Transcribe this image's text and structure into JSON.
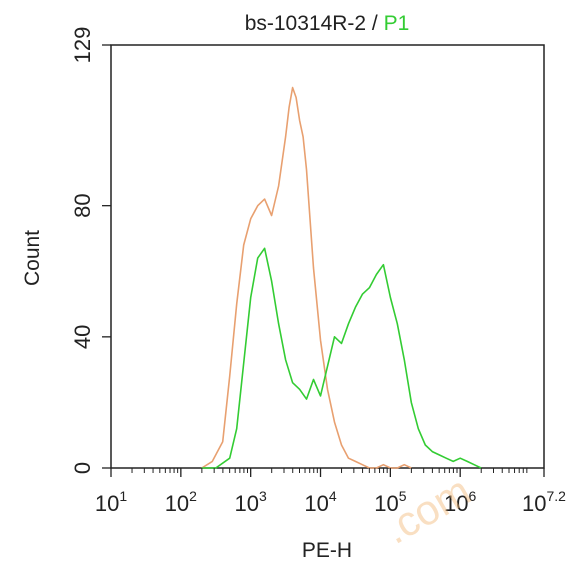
{
  "chart_data": {
    "type": "histogram",
    "title": {
      "sample": "bs-10314R-2",
      "separator": " / ",
      "gate": "P1"
    },
    "xlabel": "PE-H",
    "ylabel": "Count",
    "x_scale": "log",
    "xlim_log10": [
      1,
      7.2
    ],
    "ylim": [
      0,
      129
    ],
    "x_ticks": [
      {
        "base": "10",
        "exp": "1",
        "value": 1
      },
      {
        "base": "10",
        "exp": "2",
        "value": 2
      },
      {
        "base": "10",
        "exp": "3",
        "value": 3
      },
      {
        "base": "10",
        "exp": "4",
        "value": 4
      },
      {
        "base": "10",
        "exp": "5",
        "value": 5
      },
      {
        "base": "10",
        "exp": "6",
        "value": 6
      },
      {
        "base": "10",
        "exp": "7.2",
        "value": 7.2
      }
    ],
    "y_ticks": [
      {
        "label": "0",
        "value": 0
      },
      {
        "label": "40",
        "value": 40
      },
      {
        "label": "80",
        "value": 80
      },
      {
        "label": "129",
        "value": 129
      }
    ],
    "colors": {
      "control": "#e8a070",
      "sample": "#33cc33",
      "title_gate": "#33cc33",
      "axis": "#222222"
    },
    "series": [
      {
        "key": "control",
        "x_log10": [
          2.3,
          2.45,
          2.6,
          2.7,
          2.8,
          2.9,
          3.0,
          3.1,
          3.2,
          3.3,
          3.4,
          3.5,
          3.55,
          3.6,
          3.65,
          3.7,
          3.75,
          3.8,
          3.9,
          4.0,
          4.1,
          4.2,
          4.3,
          4.4,
          4.5,
          4.6,
          4.7,
          4.8,
          4.9,
          5.0,
          5.1,
          5.2,
          5.3
        ],
        "counts": [
          0,
          2,
          8,
          28,
          50,
          68,
          76,
          80,
          82,
          77,
          86,
          101,
          110,
          116,
          113,
          106,
          101,
          91,
          61,
          39,
          24,
          14,
          7,
          3,
          2,
          1,
          0,
          0,
          1,
          0,
          0,
          1,
          0
        ]
      },
      {
        "key": "sample",
        "x_log10": [
          2.3,
          2.5,
          2.7,
          2.8,
          2.9,
          3.0,
          3.1,
          3.2,
          3.3,
          3.4,
          3.5,
          3.6,
          3.7,
          3.8,
          3.9,
          4.0,
          4.1,
          4.2,
          4.3,
          4.4,
          4.5,
          4.6,
          4.7,
          4.8,
          4.9,
          5.0,
          5.1,
          5.2,
          5.3,
          5.4,
          5.5,
          5.6,
          5.7,
          5.8,
          5.9,
          6.0,
          6.1,
          6.2,
          6.3
        ],
        "counts": [
          0,
          0,
          3,
          12,
          32,
          52,
          64,
          67,
          57,
          44,
          33,
          26,
          24,
          21,
          27,
          22,
          31,
          40,
          38,
          44,
          49,
          53,
          55,
          59,
          62,
          52,
          44,
          33,
          20,
          12,
          7,
          5,
          4,
          3,
          2,
          3,
          2,
          1,
          0
        ]
      }
    ]
  },
  "watermark": {
    "text": ".com"
  }
}
